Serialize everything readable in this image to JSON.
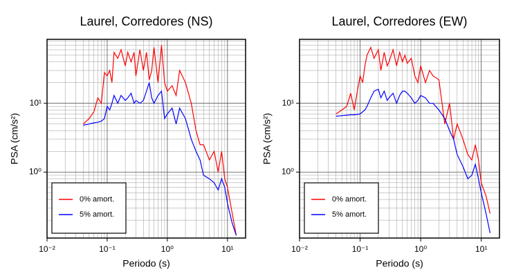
{
  "chart_data": [
    {
      "type": "line",
      "title": "Laurel, Corredores (NS)",
      "xlabel": "Periodo (s)",
      "ylabel": "PSA (cm/s²)",
      "xscale": "log",
      "yscale": "log",
      "grid": true,
      "legend": "lower left",
      "xlim": [
        0.01,
        20
      ],
      "ylim": [
        0.11,
        85
      ],
      "xticks": [
        {
          "value": 0.01,
          "label": "10⁻²"
        },
        {
          "value": 0.1,
          "label": "10⁻¹"
        },
        {
          "value": 1,
          "label": "10⁰"
        },
        {
          "value": 10,
          "label": "10¹"
        }
      ],
      "yticks": [
        {
          "value": 1,
          "label": "10⁰"
        },
        {
          "value": 10,
          "label": "10¹"
        }
      ],
      "x": [
        0.04,
        0.05,
        0.06,
        0.07,
        0.08,
        0.09,
        0.1,
        0.11,
        0.12,
        0.13,
        0.15,
        0.17,
        0.2,
        0.22,
        0.25,
        0.28,
        0.3,
        0.35,
        0.4,
        0.45,
        0.5,
        0.55,
        0.6,
        0.7,
        0.8,
        0.9,
        1.0,
        1.2,
        1.4,
        1.6,
        2.0,
        2.5,
        3.0,
        3.5,
        4.0,
        5.0,
        6.0,
        7.0,
        8.0,
        9.0,
        10,
        12,
        14
      ],
      "series": [
        {
          "name": "0% amort.",
          "color": "#ff0000",
          "values": [
            5.0,
            6,
            7.5,
            12,
            10,
            28,
            25,
            30,
            20,
            55,
            45,
            60,
            35,
            55,
            40,
            55,
            25,
            60,
            30,
            55,
            22,
            30,
            65,
            20,
            70,
            20,
            15,
            18,
            13,
            30,
            20,
            10,
            4,
            2.5,
            2.5,
            1.5,
            2,
            1.0,
            2,
            0.8,
            0.6,
            0.25,
            0.12
          ]
        },
        {
          "name": "5% amort.",
          "color": "#0000ff",
          "values": [
            4.8,
            5,
            5.2,
            5.3,
            5.5,
            6,
            9,
            8,
            10,
            13,
            10,
            13,
            11,
            12,
            14,
            10,
            11,
            10,
            11,
            15,
            20,
            12,
            10,
            13,
            15,
            6,
            7,
            8.5,
            5,
            8.5,
            6,
            3,
            2,
            1.5,
            0.9,
            0.8,
            0.7,
            0.55,
            0.8,
            0.6,
            0.35,
            0.18,
            0.12
          ]
        }
      ]
    },
    {
      "type": "line",
      "title": "Laurel, Corredores (EW)",
      "xlabel": "Periodo (s)",
      "ylabel": "PSA (cm/s²)",
      "xscale": "log",
      "yscale": "log",
      "grid": true,
      "legend": "lower left",
      "xlim": [
        0.01,
        20
      ],
      "ylim": [
        0.11,
        85
      ],
      "xticks": [
        {
          "value": 0.01,
          "label": "10⁻²"
        },
        {
          "value": 0.1,
          "label": "10⁻¹"
        },
        {
          "value": 1,
          "label": "10⁰"
        },
        {
          "value": 10,
          "label": "10¹"
        }
      ],
      "yticks": [
        {
          "value": 1,
          "label": "10⁰"
        },
        {
          "value": 10,
          "label": "10¹"
        }
      ],
      "x": [
        0.04,
        0.05,
        0.06,
        0.07,
        0.08,
        0.09,
        0.1,
        0.11,
        0.12,
        0.13,
        0.15,
        0.17,
        0.2,
        0.22,
        0.25,
        0.28,
        0.3,
        0.35,
        0.4,
        0.45,
        0.5,
        0.55,
        0.6,
        0.7,
        0.8,
        0.9,
        1.0,
        1.2,
        1.4,
        1.6,
        2.0,
        2.5,
        3.0,
        3.5,
        4.0,
        5.0,
        6.0,
        7.0,
        8.0,
        9.0,
        10,
        12,
        14
      ],
      "series": [
        {
          "name": "0% amort.",
          "color": "#ff0000",
          "values": [
            7,
            8,
            9,
            14,
            8,
            15,
            25,
            20,
            35,
            50,
            65,
            45,
            60,
            30,
            55,
            35,
            40,
            60,
            35,
            55,
            40,
            50,
            38,
            45,
            25,
            20,
            35,
            20,
            30,
            25,
            22,
            5,
            10,
            3,
            5,
            3,
            1.8,
            1.5,
            2.5,
            1.5,
            0.7,
            0.45,
            0.25
          ]
        },
        {
          "name": "5% amort.",
          "color": "#0000ff",
          "values": [
            6.5,
            6.6,
            6.7,
            6.8,
            6.8,
            6.9,
            7,
            7.5,
            8,
            9,
            12,
            15,
            16,
            12,
            15,
            11,
            12,
            14,
            10,
            13,
            15,
            15,
            14,
            12,
            10,
            11,
            13,
            12,
            10,
            10,
            8,
            6,
            4,
            3,
            1.8,
            1.2,
            0.8,
            0.9,
            1.3,
            0.8,
            0.5,
            0.25,
            0.13
          ]
        }
      ]
    }
  ]
}
